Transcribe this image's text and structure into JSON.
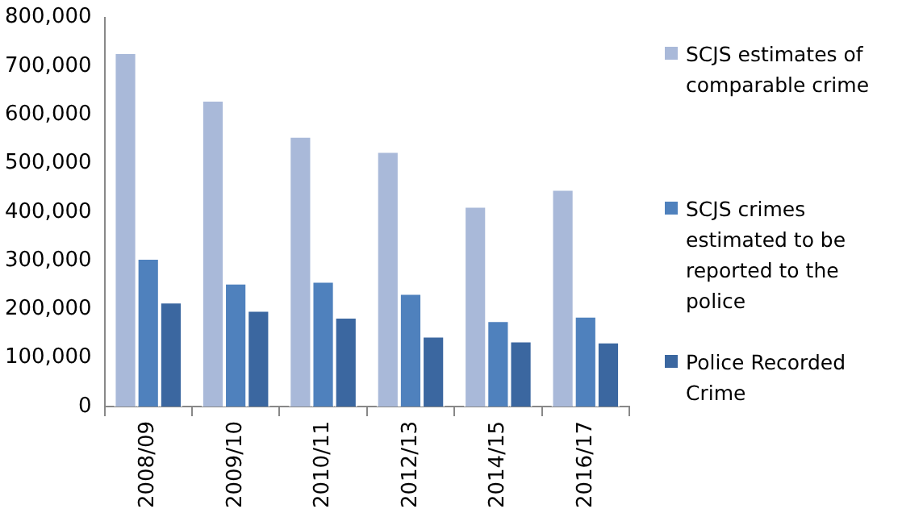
{
  "chart_data": {
    "type": "bar",
    "categories": [
      "2008/09",
      "2009/10",
      "2010/11",
      "2012/13",
      "2014/15",
      "2016/17"
    ],
    "series": [
      {
        "name": "SCJS estimates of comparable crime",
        "color": "#a9b9d9",
        "values": [
          728000,
          630000,
          556000,
          525000,
          412000,
          447000
        ]
      },
      {
        "name": "SCJS crimes estimated to be reported to the police",
        "color": "#4f81bd",
        "values": [
          305000,
          254000,
          258000,
          233000,
          177000,
          186000
        ]
      },
      {
        "name": "Police Recorded Crime",
        "color": "#3b67a0",
        "values": [
          215000,
          198000,
          184000,
          145000,
          135000,
          133000
        ]
      }
    ],
    "ylim": [
      0,
      800000
    ],
    "yticks": [
      0,
      {
        "value": 100000,
        "label": "100,000"
      },
      {
        "value": 200000,
        "label": "200,000"
      },
      {
        "value": 300000,
        "label": "300,000"
      },
      {
        "value": 400000,
        "label": "400,000"
      },
      {
        "value": 500000,
        "label": "500,000"
      },
      {
        "value": 600000,
        "label": "600,000"
      },
      {
        "value": 700000,
        "label": "700,000"
      },
      {
        "value": 800000,
        "label": "800,000"
      }
    ],
    "grid": false,
    "legend": "right"
  }
}
